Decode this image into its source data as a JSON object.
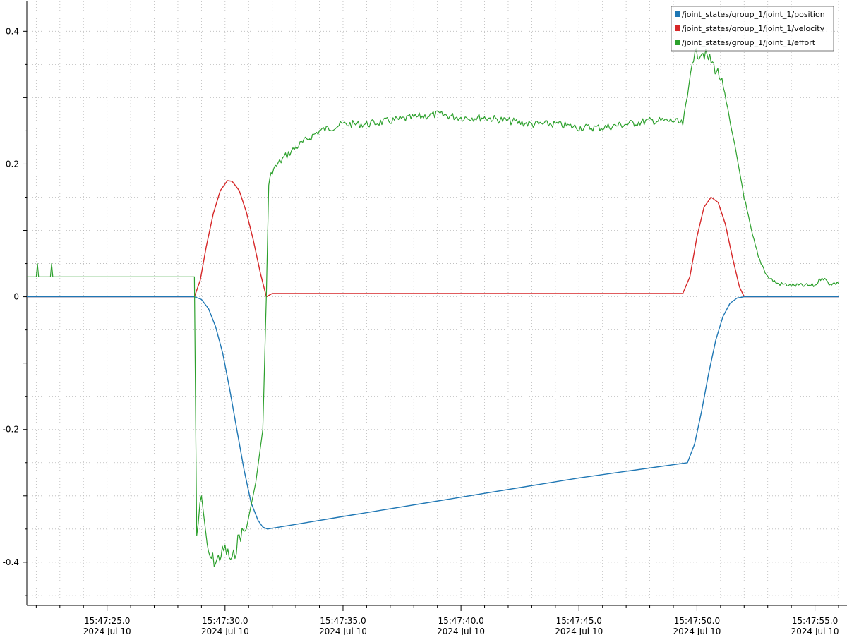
{
  "chart_data": {
    "type": "line",
    "title": "",
    "xlabel": "",
    "ylabel": "",
    "xlim": [
      "15:47:21.6",
      "15:47:56.0"
    ],
    "ylim": [
      -0.465,
      0.445
    ],
    "grid": true,
    "legend_position": "top-right",
    "y_ticks": [
      {
        "value": 0.4,
        "label": "0.4"
      },
      {
        "value": 0.2,
        "label": "0.2"
      },
      {
        "value": 0,
        "label": "0"
      },
      {
        "value": -0.2,
        "label": "-0.2"
      },
      {
        "value": -0.4,
        "label": "-0.4"
      }
    ],
    "x_ticks": [
      {
        "time": "15:47:25.0",
        "label": "15:47:25.0",
        "date": "2024 Jul 10"
      },
      {
        "time": "15:47:30.0",
        "label": "15:47:30.0",
        "date": "2024 Jul 10"
      },
      {
        "time": "15:47:35.0",
        "label": "15:47:35.0",
        "date": "2024 Jul 10"
      },
      {
        "time": "15:47:40.0",
        "label": "15:47:40.0",
        "date": "2024 Jul 10"
      },
      {
        "time": "15:47:45.0",
        "label": "15:47:45.0",
        "date": "2024 Jul 10"
      },
      {
        "time": "15:47:50.0",
        "label": "15:47:50.0",
        "date": "2024 Jul 10"
      },
      {
        "time": "15:47:55.0",
        "label": "15:47:55.0",
        "date": "2024 Jul 10"
      }
    ],
    "series": [
      {
        "name": "/joint_states/group_1/joint_1/position",
        "color": "#1f77b4",
        "points": [
          [
            "15:47:21.6",
            0
          ],
          [
            "15:47:28.7",
            0
          ],
          [
            "15:47:29.0",
            -0.004
          ],
          [
            "15:47:29.3",
            -0.018
          ],
          [
            "15:47:29.6",
            -0.045
          ],
          [
            "15:47:29.9",
            -0.085
          ],
          [
            "15:47:30.2",
            -0.14
          ],
          [
            "15:47:30.5",
            -0.2
          ],
          [
            "15:47:30.8",
            -0.26
          ],
          [
            "15:47:31.1",
            -0.31
          ],
          [
            "15:47:31.4",
            -0.337
          ],
          [
            "15:47:31.6",
            -0.347
          ],
          [
            "15:47:31.8",
            -0.35
          ],
          [
            "15:47:33.0",
            -0.343
          ],
          [
            "15:47:35.0",
            -0.331
          ],
          [
            "15:47:40.0",
            -0.302
          ],
          [
            "15:47:45.0",
            -0.273
          ],
          [
            "15:47:49.6",
            -0.25
          ],
          [
            "15:47:49.9",
            -0.222
          ],
          [
            "15:47:50.2",
            -0.172
          ],
          [
            "15:47:50.5",
            -0.115
          ],
          [
            "15:47:50.8",
            -0.065
          ],
          [
            "15:47:51.1",
            -0.03
          ],
          [
            "15:47:51.4",
            -0.01
          ],
          [
            "15:47:51.7",
            -0.002
          ],
          [
            "15:47:52.0",
            0
          ],
          [
            "15:47:56.0",
            0
          ]
        ]
      },
      {
        "name": "/joint_states/group_1/joint_1/velocity",
        "color": "#d62728",
        "points": [
          [
            "15:47:21.6",
            0
          ],
          [
            "15:47:28.7",
            0
          ],
          [
            "15:47:28.95",
            0.025
          ],
          [
            "15:47:29.2",
            0.075
          ],
          [
            "15:47:29.5",
            0.125
          ],
          [
            "15:47:29.8",
            0.16
          ],
          [
            "15:47:30.1",
            0.175
          ],
          [
            "15:47:30.3",
            0.174
          ],
          [
            "15:47:30.6",
            0.16
          ],
          [
            "15:47:30.9",
            0.128
          ],
          [
            "15:47:31.2",
            0.085
          ],
          [
            "15:47:31.5",
            0.035
          ],
          [
            "15:47:31.75",
            0
          ],
          [
            "15:47:32.0",
            0.005
          ],
          [
            "15:47:40.0",
            0.005
          ],
          [
            "15:47:49.4",
            0.005
          ],
          [
            "15:47:49.7",
            0.03
          ],
          [
            "15:47:50.0",
            0.09
          ],
          [
            "15:47:50.3",
            0.135
          ],
          [
            "15:47:50.6",
            0.15
          ],
          [
            "15:47:50.9",
            0.142
          ],
          [
            "15:47:51.2",
            0.11
          ],
          [
            "15:47:51.5",
            0.06
          ],
          [
            "15:47:51.8",
            0.015
          ],
          [
            "15:47:52.0",
            0
          ],
          [
            "15:47:56.0",
            0
          ]
        ]
      },
      {
        "name": "/joint_states/group_1/joint_1/effort",
        "color": "#2ca02c",
        "points": [
          [
            "15:47:21.6",
            0.03
          ],
          [
            "15:47:22.0",
            0.03
          ],
          [
            "15:47:22.05",
            0.05
          ],
          [
            "15:47:22.1",
            0.03
          ],
          [
            "15:47:22.6",
            0.03
          ],
          [
            "15:47:22.65",
            0.05
          ],
          [
            "15:47:22.7",
            0.03
          ],
          [
            "15:47:28.7",
            0.03
          ],
          [
            "15:47:28.8",
            -0.36
          ],
          [
            "15:47:29.0",
            -0.3
          ],
          [
            "15:47:29.3",
            -0.39
          ],
          [
            "15:47:29.6",
            -0.4
          ],
          [
            "15:47:30.0",
            -0.38
          ],
          [
            "15:47:30.3",
            -0.4
          ],
          [
            "15:47:30.6",
            -0.36
          ],
          [
            "15:47:30.9",
            -0.35
          ],
          [
            "15:47:31.3",
            -0.28
          ],
          [
            "15:47:31.6",
            -0.2
          ],
          [
            "15:47:31.75",
            0.0
          ],
          [
            "15:47:31.85",
            0.17
          ],
          [
            "15:47:32.0",
            0.19
          ],
          [
            "15:47:32.5",
            0.21
          ],
          [
            "15:47:33.0",
            0.225
          ],
          [
            "15:47:34.0",
            0.25
          ],
          [
            "15:47:35.0",
            0.26
          ],
          [
            "15:47:36.0",
            0.26
          ],
          [
            "15:47:37.0",
            0.265
          ],
          [
            "15:47:38.0",
            0.27
          ],
          [
            "15:47:39.0",
            0.275
          ],
          [
            "15:47:40.0",
            0.27
          ],
          [
            "15:47:41.0",
            0.27
          ],
          [
            "15:47:42.0",
            0.265
          ],
          [
            "15:47:43.0",
            0.26
          ],
          [
            "15:47:44.0",
            0.26
          ],
          [
            "15:47:45.0",
            0.255
          ],
          [
            "15:47:46.0",
            0.255
          ],
          [
            "15:47:47.0",
            0.26
          ],
          [
            "15:47:48.0",
            0.265
          ],
          [
            "15:47:49.0",
            0.265
          ],
          [
            "15:47:49.4",
            0.26
          ],
          [
            "15:47:49.6",
            0.3
          ],
          [
            "15:47:49.8",
            0.36
          ],
          [
            "15:47:50.2",
            0.37
          ],
          [
            "15:47:50.6",
            0.355
          ],
          [
            "15:47:51.0",
            0.33
          ],
          [
            "15:47:51.3",
            0.28
          ],
          [
            "15:47:51.6",
            0.23
          ],
          [
            "15:47:52.0",
            0.15
          ],
          [
            "15:47:52.3",
            0.1
          ],
          [
            "15:47:52.6",
            0.06
          ],
          [
            "15:47:53.0",
            0.03
          ],
          [
            "15:47:53.4",
            0.02
          ],
          [
            "15:47:54.0",
            0.017
          ],
          [
            "15:47:55.0",
            0.017
          ],
          [
            "15:47:55.3",
            0.03
          ],
          [
            "15:47:55.6",
            0.02
          ],
          [
            "15:47:56.0",
            0.02
          ]
        ]
      }
    ]
  }
}
